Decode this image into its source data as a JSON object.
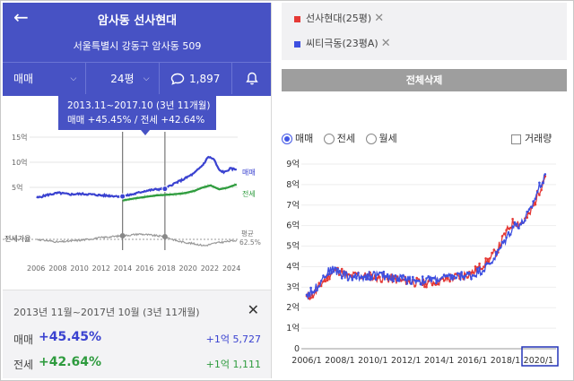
{
  "left": {
    "title": "암사동 선사현대",
    "address": "서울특별시 강동구 암사동 509",
    "tabs": {
      "trade_type": "매매",
      "size": "24평",
      "comments": "1,897"
    },
    "tooltip": {
      "line1": "2013.11~2017.10 (3년 11개월)",
      "line2": "매매 +45.45% / 전세 +42.64%"
    },
    "chart": {
      "y_ticks": [
        "15억",
        "10억",
        "5억"
      ],
      "x_ticks": [
        "2006",
        "2008",
        "2010",
        "2012",
        "2014",
        "2016",
        "2018",
        "2020",
        "2022",
        "2024"
      ],
      "legend_sale": "매매",
      "legend_rent": "전세",
      "ratio_label": "전세가율",
      "avg_label": "평균",
      "avg_value": "62.5%"
    },
    "summary": {
      "period": "2013년 11월~2017년 10월 (3년 11개월)",
      "sale_label": "매매",
      "sale_pct": "+45.45%",
      "sale_amt": "+1억 5,727",
      "rent_label": "전세",
      "rent_pct": "+42.64%",
      "rent_amt": "+1억 1,111"
    }
  },
  "right": {
    "compare": [
      {
        "name": "선사현대(25평)",
        "color": "#e53935"
      },
      {
        "name": "씨티극동(23평A)",
        "color": "#3d4fe0"
      }
    ],
    "delete_all": "전체삭제",
    "radios": [
      "매매",
      "전세",
      "월세"
    ],
    "selected_radio": "매매",
    "volume_label": "거래량"
  },
  "chart_data": [
    {
      "type": "line",
      "x_range": [
        2006,
        2024.5
      ],
      "ylim": [
        0,
        15
      ],
      "series": [
        {
          "name": "매매",
          "color": "#3a42d0",
          "points": [
            [
              2006,
              2.9
            ],
            [
              2007,
              3.5
            ],
            [
              2008,
              3.9
            ],
            [
              2009,
              3.6
            ],
            [
              2010,
              3.7
            ],
            [
              2011,
              3.6
            ],
            [
              2012,
              3.4
            ],
            [
              2013,
              3.3
            ],
            [
              2013.9,
              3.2
            ],
            [
              2015,
              3.7
            ],
            [
              2016,
              4.3
            ],
            [
              2017,
              4.6
            ],
            [
              2017.8,
              4.7
            ],
            [
              2018.5,
              5.6
            ],
            [
              2019.5,
              6.6
            ],
            [
              2020.5,
              7.8
            ],
            [
              2021.3,
              9.5
            ],
            [
              2021.8,
              11.1
            ],
            [
              2022.3,
              10.6
            ],
            [
              2022.8,
              8.4
            ],
            [
              2023.3,
              8.0
            ],
            [
              2023.8,
              8.7
            ],
            [
              2024.4,
              8.6
            ]
          ]
        },
        {
          "name": "전세",
          "color": "#2e9b3e",
          "points": [
            [
              2013.9,
              2.4
            ],
            [
              2015,
              2.8
            ],
            [
              2016,
              3.1
            ],
            [
              2017,
              3.4
            ],
            [
              2017.8,
              3.5
            ],
            [
              2018.5,
              3.6
            ],
            [
              2019.5,
              3.8
            ],
            [
              2020.5,
              4.3
            ],
            [
              2021.3,
              5.0
            ],
            [
              2022,
              5.4
            ],
            [
              2022.8,
              4.6
            ],
            [
              2023.5,
              4.9
            ],
            [
              2024.4,
              5.6
            ]
          ]
        }
      ]
    },
    {
      "type": "line",
      "x_ticks": [
        "2006/1",
        "2008/1",
        "2010/1",
        "2012/1",
        "2014/1",
        "2016/1",
        "2018/1",
        "2020/1"
      ],
      "y_ticks": [
        "0",
        "1억",
        "2억",
        "3억",
        "4억",
        "5억",
        "6억",
        "7억",
        "8억",
        "9억"
      ],
      "ylim": [
        0,
        9
      ],
      "series": [
        {
          "name": "선사현대(25평)",
          "color": "#e53935",
          "points": [
            [
              2006,
              2.5
            ],
            [
              2006.5,
              2.7
            ],
            [
              2007,
              3.3
            ],
            [
              2007.5,
              3.7
            ],
            [
              2008,
              3.8
            ],
            [
              2008.5,
              3.5
            ],
            [
              2009,
              3.6
            ],
            [
              2010,
              3.5
            ],
            [
              2011,
              3.4
            ],
            [
              2012,
              3.3
            ],
            [
              2013,
              3.2
            ],
            [
              2014,
              3.3
            ],
            [
              2015,
              3.5
            ],
            [
              2016,
              3.7
            ],
            [
              2016.5,
              4.0
            ],
            [
              2017,
              4.3
            ],
            [
              2017.5,
              4.8
            ],
            [
              2018,
              5.6
            ],
            [
              2018.5,
              6.2
            ],
            [
              2019,
              6.1
            ],
            [
              2019.5,
              6.6
            ],
            [
              2020,
              7.6
            ],
            [
              2020.4,
              8.4
            ]
          ]
        },
        {
          "name": "씨티극동(23평A)",
          "color": "#3d4fe0",
          "points": [
            [
              2006,
              2.6
            ],
            [
              2006.5,
              2.9
            ],
            [
              2007,
              3.5
            ],
            [
              2007.5,
              3.9
            ],
            [
              2008,
              3.7
            ],
            [
              2008.5,
              3.5
            ],
            [
              2009,
              3.5
            ],
            [
              2010,
              3.6
            ],
            [
              2011,
              3.5
            ],
            [
              2012,
              3.4
            ],
            [
              2013,
              3.3
            ],
            [
              2014,
              3.4
            ],
            [
              2015,
              3.5
            ],
            [
              2016,
              3.6
            ],
            [
              2016.5,
              3.8
            ],
            [
              2017,
              4.1
            ],
            [
              2017.5,
              4.6
            ],
            [
              2018,
              5.3
            ],
            [
              2018.5,
              6.0
            ],
            [
              2019,
              6.1
            ],
            [
              2019.5,
              6.7
            ],
            [
              2020,
              7.8
            ],
            [
              2020.4,
              8.5
            ]
          ]
        }
      ]
    }
  ]
}
